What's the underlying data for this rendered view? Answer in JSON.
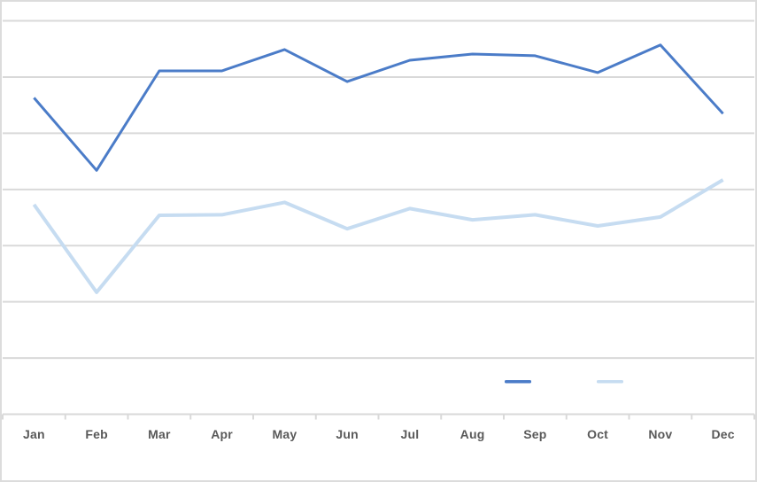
{
  "chart": {
    "background_color": "#ffffff",
    "border_color": "#dcdcdc",
    "gridline_color": "#d9d9d9",
    "tick_color": "#d9d9d9",
    "axis_label_color": "#595959"
  },
  "chart_data": {
    "type": "line",
    "title": "",
    "xlabel": "",
    "ylabel": "",
    "categories": [
      "Jan",
      "Feb",
      "Mar",
      "Apr",
      "May",
      "Jun",
      "Jul",
      "Aug",
      "Sep",
      "Oct",
      "Nov",
      "Dec"
    ],
    "series": [
      {
        "name": "",
        "color": "#4b7cc8",
        "line_width": 3,
        "values": [
          5.63,
          4.34,
          6.11,
          6.11,
          6.49,
          5.92,
          6.3,
          6.41,
          6.38,
          6.08,
          6.57,
          5.35
        ]
      },
      {
        "name": "",
        "color": "#c6dcf1",
        "line_width": 4,
        "values": [
          3.73,
          2.17,
          3.54,
          3.55,
          3.77,
          3.3,
          3.66,
          3.46,
          3.55,
          3.35,
          3.51,
          4.17
        ]
      }
    ],
    "ylim": [
      0,
      7
    ],
    "gridline_interval": 1,
    "gridlines_visible": true,
    "y_axis_labels_visible": false,
    "legend": {
      "position": "bottom",
      "labels_visible": false,
      "swatch_colors": [
        "#4b7cc8",
        "#c6dcf1"
      ]
    }
  }
}
